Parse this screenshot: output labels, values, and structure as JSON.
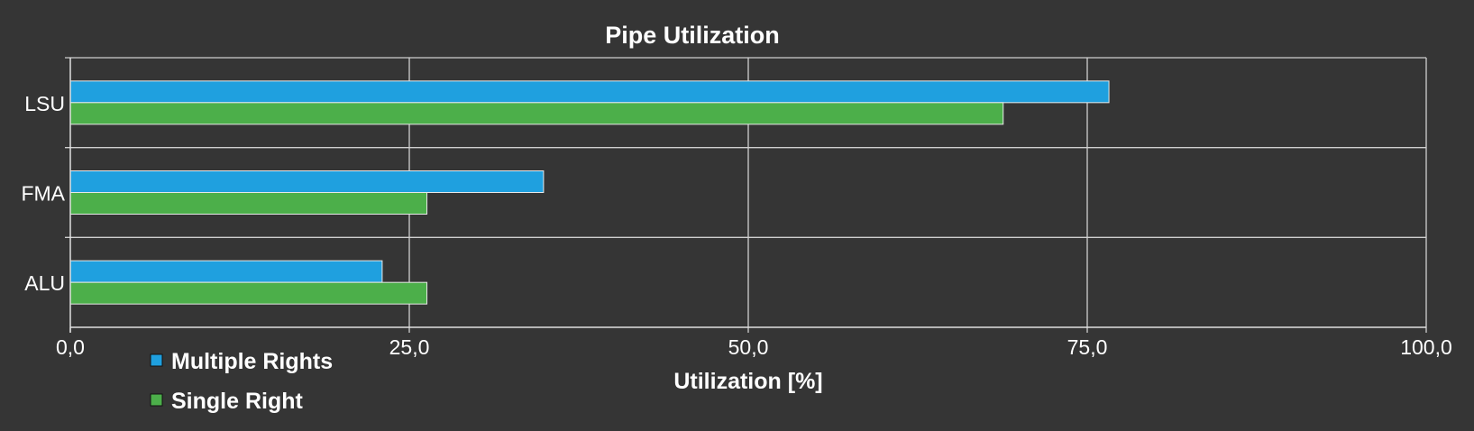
{
  "chart_data": {
    "type": "bar",
    "orientation": "horizontal",
    "title": "Pipe Utilization",
    "xlabel": "Utilization [%]",
    "ylabel": "",
    "categories": [
      "LSU",
      "FMA",
      "ALU"
    ],
    "series": [
      {
        "name": "Multiple Rights",
        "color": "#1fa0df",
        "values": [
          76.6,
          34.9,
          23.0
        ]
      },
      {
        "name": "Single Right",
        "color": "#4caf4a",
        "values": [
          68.8,
          26.3,
          26.3
        ]
      }
    ],
    "xlim": [
      0,
      100
    ],
    "xticks": [
      "0,0",
      "25,0",
      "50,0",
      "75,0",
      "100,0"
    ],
    "grid": true,
    "legend_position": "bottom-left"
  }
}
